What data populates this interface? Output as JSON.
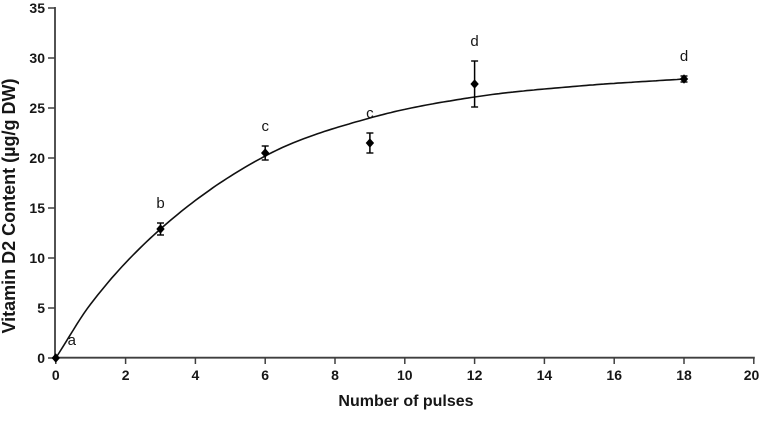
{
  "chart_data": {
    "type": "scatter",
    "title": "",
    "xlabel": "Number of pulses",
    "ylabel": "Vitamin D2 Content (µg/g DW)",
    "xlim": [
      0,
      20
    ],
    "ylim": [
      0,
      35
    ],
    "x_ticks": [
      0,
      2,
      4,
      6,
      8,
      10,
      12,
      14,
      16,
      18,
      20
    ],
    "y_ticks": [
      0,
      5,
      10,
      15,
      20,
      25,
      30,
      35
    ],
    "grid": false,
    "legend": "none",
    "series": [
      {
        "name": "Vitamin D2 content",
        "marker": "diamond",
        "color": "#000000",
        "x": [
          0,
          3,
          6,
          9,
          12,
          18
        ],
        "y": [
          0,
          12.9,
          20.5,
          21.5,
          27.4,
          27.9
        ],
        "error": [
          0,
          0.6,
          0.7,
          1.0,
          2.3,
          0.3
        ],
        "point_labels": [
          "a",
          "b",
          "c",
          "c",
          "d",
          "d"
        ]
      }
    ],
    "trend_curve": {
      "x": [
        0,
        1,
        3,
        6,
        9,
        12,
        15,
        18
      ],
      "y": [
        0,
        5.4,
        12.9,
        20.2,
        24.0,
        26.1,
        27.2,
        27.9
      ]
    }
  },
  "colors": {
    "axis": "#3f3f3f",
    "curve": "#111111",
    "marker": "#000000"
  }
}
